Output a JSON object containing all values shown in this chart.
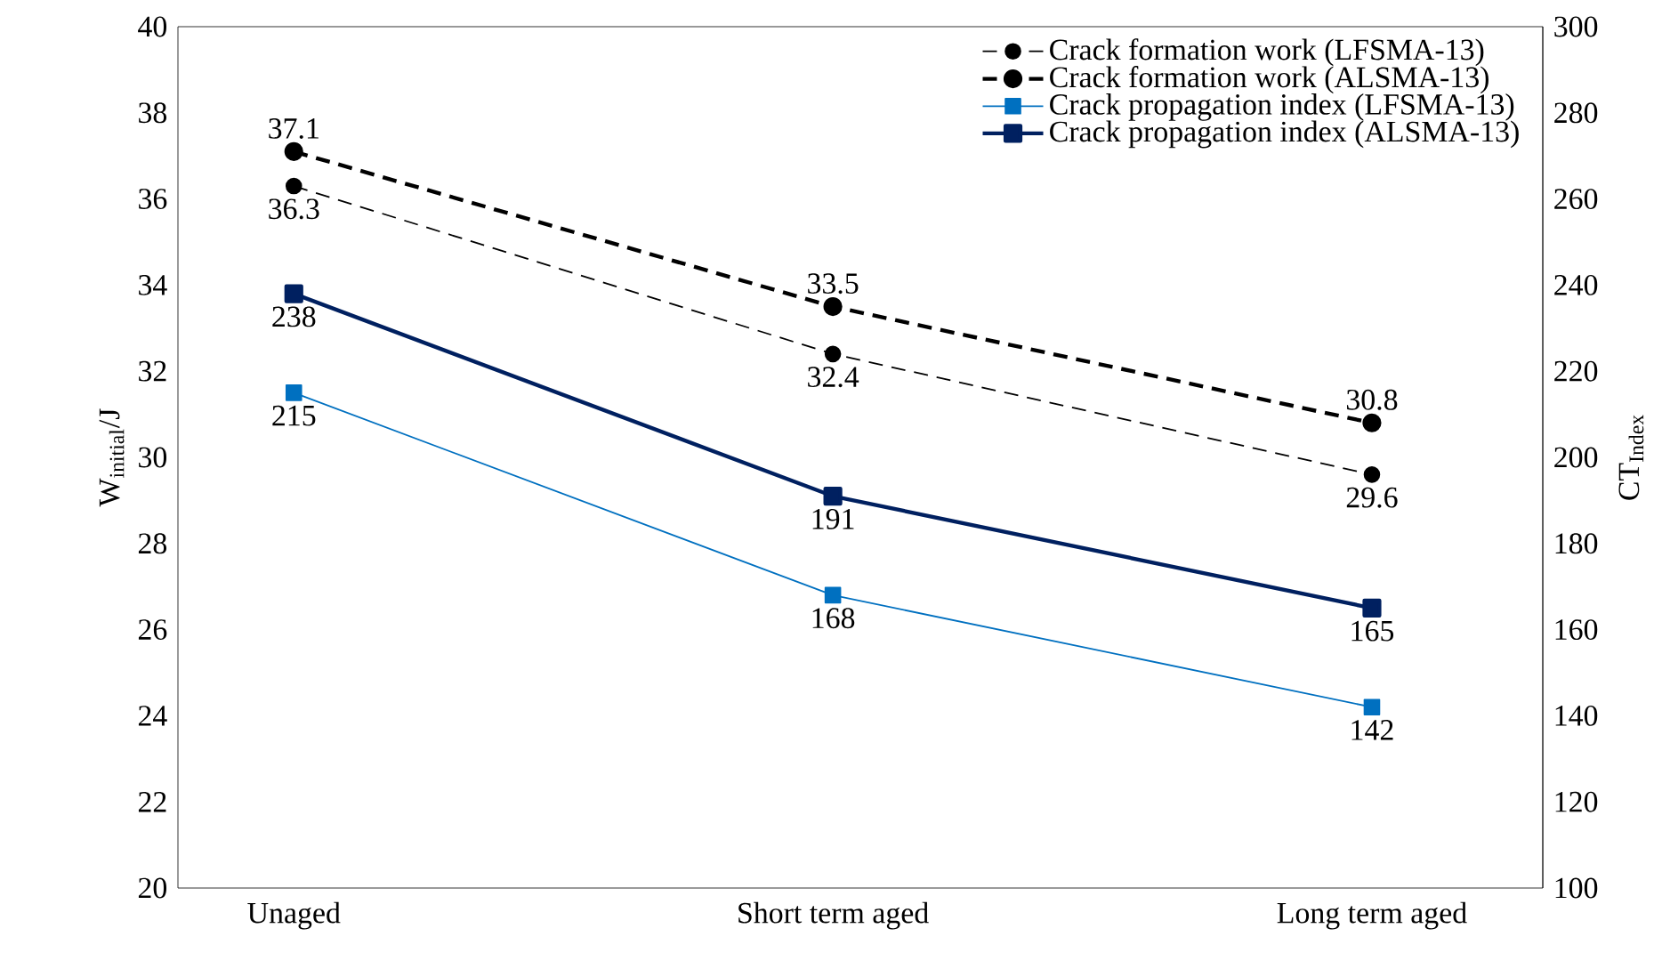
{
  "chart_data": {
    "type": "line",
    "ylabel": "W$_{initial}$/J",
    "y2label": "CT$_{Index}$",
    "categories": [
      "Unaged",
      "Short term aged",
      "Long term aged"
    ],
    "ylim": [
      20,
      40
    ],
    "yticks": [
      20,
      22,
      24,
      26,
      28,
      30,
      32,
      34,
      36,
      38,
      40
    ],
    "y2lim": [
      100,
      300
    ],
    "y2ticks": [
      100,
      120,
      140,
      160,
      180,
      200,
      220,
      240,
      260,
      280,
      300
    ],
    "legend": "top right",
    "grid": false,
    "data_labels": true,
    "series": [
      {
        "name": "Crack formation work (LFSMA-13)",
        "color": "#000000",
        "values": [
          36.3,
          32.4,
          29.6
        ],
        "marker": "circle",
        "line_style": "dashed"
      },
      {
        "name": "Crack formation work (ALSMA-13)",
        "color": "#000000",
        "values": [
          37.1,
          33.5,
          30.8
        ],
        "marker": "circle",
        "line_style": "dashed"
      },
      {
        "name": "Crack propagation index (LFSMA-13)",
        "color": "#0070c0",
        "values": [
          215,
          168,
          142
        ],
        "axis": "y2",
        "marker": "square",
        "line_style": "solid"
      },
      {
        "name": "Crack propagation index (ALSMA-13)",
        "color": "#002060",
        "values": [
          238,
          191,
          165
        ],
        "axis": "y2",
        "marker": "square",
        "line_style": "solid"
      }
    ]
  }
}
